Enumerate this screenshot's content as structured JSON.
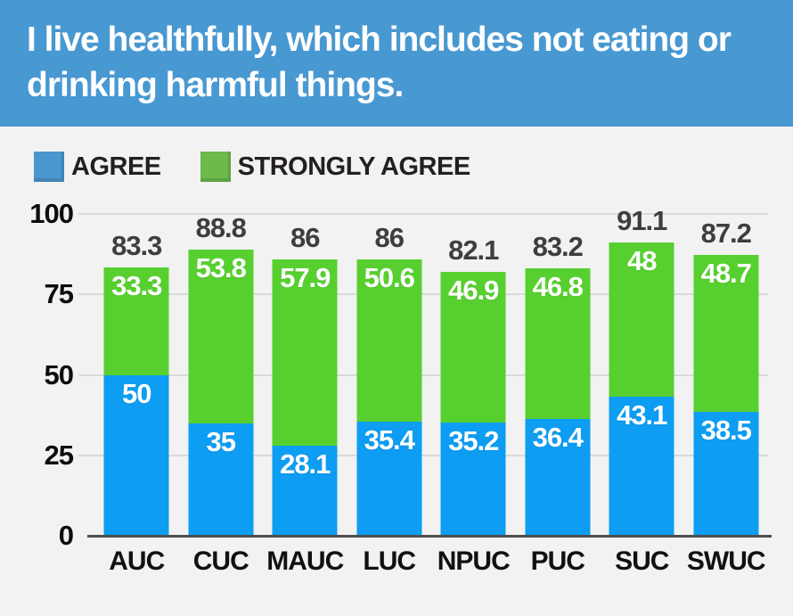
{
  "header": {
    "title": "I live healthfully, which includes not eating or drinking harmful things.",
    "bg_color": "#4898d2",
    "text_color": "#ffffff"
  },
  "legend": {
    "items": [
      {
        "label": "AGREE",
        "swatch_color": "#4a97cf"
      },
      {
        "label": "STRONGLY AGREE",
        "swatch_color": "#6cb94c"
      }
    ]
  },
  "colors": {
    "page_background": "#f2f2f2",
    "agree_bar": "#0d9df2",
    "strongly_agree_bar": "#57d02f",
    "gridline": "#d9d9d9",
    "axis_line": "#4d4d4d",
    "total_label": "#3e3e3e",
    "segment_label": "#ffffff"
  },
  "chart_data": {
    "type": "bar",
    "stacked": true,
    "title": "I live healthfully, which includes not eating or drinking harmful things.",
    "categories": [
      "AUC",
      "CUC",
      "MAUC",
      "LUC",
      "NPUC",
      "PUC",
      "SUC",
      "SWUC"
    ],
    "series": [
      {
        "name": "AGREE",
        "color": "#0d9df2",
        "values": [
          50,
          35,
          28.1,
          35.4,
          35.2,
          36.4,
          43.1,
          38.5
        ]
      },
      {
        "name": "STRONGLY AGREE",
        "color": "#57d02f",
        "values": [
          33.3,
          53.8,
          57.9,
          50.6,
          46.9,
          46.8,
          48,
          48.7
        ]
      }
    ],
    "totals": [
      83.3,
      88.8,
      86,
      86,
      82.1,
      83.2,
      91.1,
      87.2
    ],
    "xlabel": "",
    "ylabel": "",
    "ylim": [
      0,
      100
    ],
    "yticks": [
      0,
      25,
      50,
      75,
      100
    ],
    "grid": true,
    "legend_position": "top-left"
  }
}
